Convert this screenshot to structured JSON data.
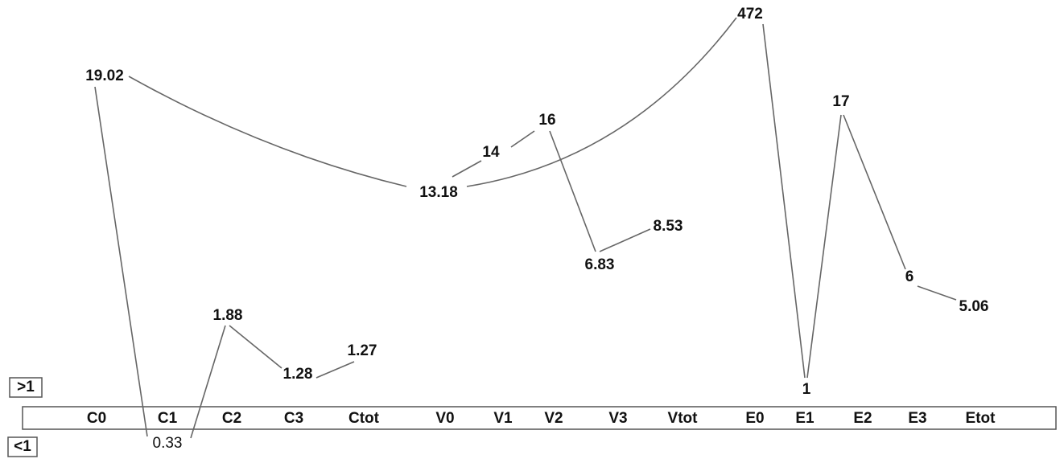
{
  "axis": {
    "categories": [
      "C0",
      "C1",
      "C2",
      "C3",
      "Ctot",
      "V0",
      "V1",
      "V2",
      "V3",
      "Vtot",
      "E0",
      "E1",
      "E2",
      "E3",
      "Etot"
    ]
  },
  "markers": {
    "above": ">1",
    "below": "<1"
  },
  "nodes": [
    {
      "label": "19.02"
    },
    {
      "label": "0.33"
    },
    {
      "label": "1.88"
    },
    {
      "label": "1.28"
    },
    {
      "label": "1.27"
    },
    {
      "label": "13.18"
    },
    {
      "label": "14"
    },
    {
      "label": "16"
    },
    {
      "label": "6.83"
    },
    {
      "label": "8.53"
    },
    {
      "label": "472"
    },
    {
      "label": "1"
    },
    {
      "label": "17"
    },
    {
      "label": "6"
    },
    {
      "label": "5.06"
    }
  ]
}
